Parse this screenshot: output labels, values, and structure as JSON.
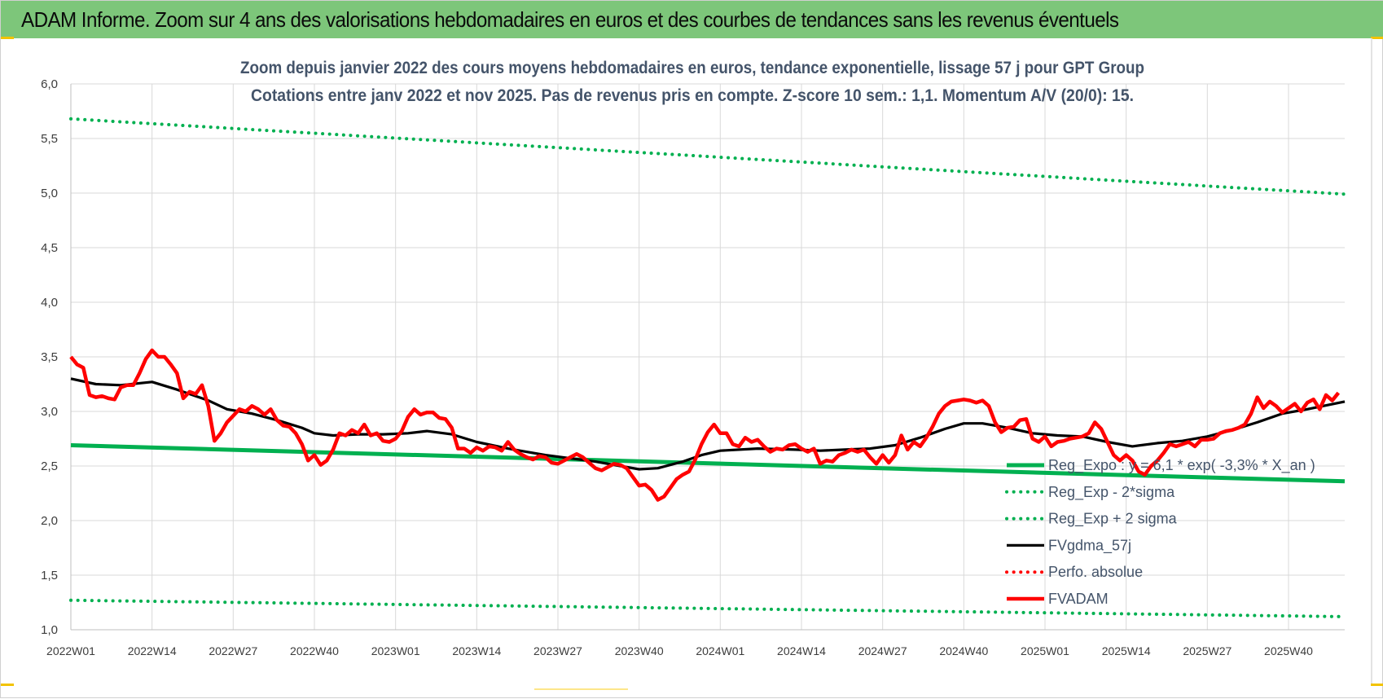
{
  "banner": {
    "title": "ADAM Informe. Zoom sur 4 ans des valorisations hebdomadaires en euros et des courbes de tendances sans les revenus éventuels"
  },
  "colors": {
    "banner_bg": "#7dc67a",
    "reg_expo": "#00b050",
    "fvgdma": "#000000",
    "fvadam": "#ff0000",
    "perfo": "#ff0000",
    "grid": "#d9d9d9",
    "title_text": "#44546a"
  },
  "chart_data": {
    "type": "line",
    "title_line1": "Zoom depuis janvier 2022 des cours moyens hebdomadaires en euros, tendance exponentielle, lissage 57 j pour GPT Group",
    "title_line2": "Cotations entre janv 2022 et nov 2025. Pas de revenus pris en compte. Z-score 10 sem.: 1,1. Momentum A/V (20/0): 15.",
    "xlabel": "",
    "ylabel": "",
    "ylim": [
      1.0,
      6.0
    ],
    "yticks": [
      "1,0",
      "1,5",
      "2,0",
      "2,5",
      "3,0",
      "3,5",
      "4,0",
      "4,5",
      "5,0",
      "5,5",
      "6,0"
    ],
    "x_range_weeks": [
      0,
      204
    ],
    "xticks": [
      {
        "w": 0,
        "label": "2022W01"
      },
      {
        "w": 13,
        "label": "2022W14"
      },
      {
        "w": 26,
        "label": "2022W27"
      },
      {
        "w": 39,
        "label": "2022W40"
      },
      {
        "w": 52,
        "label": "2023W01"
      },
      {
        "w": 65,
        "label": "2023W14"
      },
      {
        "w": 78,
        "label": "2023W27"
      },
      {
        "w": 91,
        "label": "2023W40"
      },
      {
        "w": 104,
        "label": "2024W01"
      },
      {
        "w": 117,
        "label": "2024W14"
      },
      {
        "w": 130,
        "label": "2024W27"
      },
      {
        "w": 143,
        "label": "2024W40"
      },
      {
        "w": 156,
        "label": "2025W01"
      },
      {
        "w": 169,
        "label": "2025W14"
      },
      {
        "w": 182,
        "label": "2025W27"
      },
      {
        "w": 195,
        "label": "2025W40"
      }
    ],
    "grid": true,
    "legend_position": "bottom-right",
    "series": [
      {
        "name": "Reg_Expo : y = 6,1 * exp( -3,3% * X_an )",
        "style": "solid-thick",
        "color": "#00b050",
        "points": [
          [
            0,
            2.69
          ],
          [
            204,
            2.36
          ]
        ]
      },
      {
        "name": "Reg_Exp - 2*sigma",
        "style": "dotted",
        "color": "#00b050",
        "points": [
          [
            0,
            1.27
          ],
          [
            204,
            1.12
          ]
        ]
      },
      {
        "name": "Reg_Exp + 2 sigma",
        "style": "dotted",
        "color": "#00b050",
        "points": [
          [
            0,
            5.68
          ],
          [
            204,
            4.99
          ]
        ]
      },
      {
        "name": "FVgdma_57j",
        "style": "solid",
        "color": "#000000",
        "points": [
          [
            0,
            3.3
          ],
          [
            4,
            3.25
          ],
          [
            8,
            3.24
          ],
          [
            13,
            3.27
          ],
          [
            17,
            3.2
          ],
          [
            22,
            3.1
          ],
          [
            25,
            3.02
          ],
          [
            29,
            2.98
          ],
          [
            33,
            2.92
          ],
          [
            37,
            2.85
          ],
          [
            39,
            2.8
          ],
          [
            42,
            2.78
          ],
          [
            46,
            2.79
          ],
          [
            50,
            2.79
          ],
          [
            54,
            2.8
          ],
          [
            57,
            2.82
          ],
          [
            61,
            2.79
          ],
          [
            65,
            2.72
          ],
          [
            70,
            2.66
          ],
          [
            76,
            2.6
          ],
          [
            80,
            2.57
          ],
          [
            84,
            2.54
          ],
          [
            88,
            2.5
          ],
          [
            91,
            2.47
          ],
          [
            94,
            2.48
          ],
          [
            98,
            2.54
          ],
          [
            101,
            2.6
          ],
          [
            104,
            2.64
          ],
          [
            110,
            2.66
          ],
          [
            116,
            2.65
          ],
          [
            120,
            2.64
          ],
          [
            124,
            2.65
          ],
          [
            128,
            2.66
          ],
          [
            132,
            2.69
          ],
          [
            136,
            2.76
          ],
          [
            140,
            2.84
          ],
          [
            143,
            2.89
          ],
          [
            146,
            2.89
          ],
          [
            150,
            2.85
          ],
          [
            154,
            2.8
          ],
          [
            158,
            2.78
          ],
          [
            162,
            2.77
          ],
          [
            166,
            2.72
          ],
          [
            170,
            2.68
          ],
          [
            174,
            2.71
          ],
          [
            178,
            2.73
          ],
          [
            182,
            2.77
          ],
          [
            186,
            2.83
          ],
          [
            190,
            2.9
          ],
          [
            194,
            2.98
          ],
          [
            198,
            3.02
          ],
          [
            204,
            3.09
          ]
        ]
      },
      {
        "name": "Perfo. absolue",
        "style": "dotted",
        "color": "#ff0000",
        "points": []
      },
      {
        "name": "FVADAM",
        "style": "solid-thick",
        "color": "#ff0000",
        "points": [
          [
            0,
            3.5
          ],
          [
            1,
            3.43
          ],
          [
            2,
            3.4
          ],
          [
            3,
            3.15
          ],
          [
            4,
            3.13
          ],
          [
            5,
            3.14
          ],
          [
            6,
            3.12
          ],
          [
            7,
            3.11
          ],
          [
            8,
            3.22
          ],
          [
            9,
            3.24
          ],
          [
            10,
            3.24
          ],
          [
            11,
            3.35
          ],
          [
            12,
            3.48
          ],
          [
            13,
            3.56
          ],
          [
            14,
            3.5
          ],
          [
            15,
            3.5
          ],
          [
            16,
            3.43
          ],
          [
            17,
            3.35
          ],
          [
            18,
            3.12
          ],
          [
            19,
            3.18
          ],
          [
            20,
            3.16
          ],
          [
            21,
            3.24
          ],
          [
            22,
            3.05
          ],
          [
            23,
            2.73
          ],
          [
            24,
            2.8
          ],
          [
            25,
            2.9
          ],
          [
            26,
            2.96
          ],
          [
            27,
            3.02
          ],
          [
            28,
            3.0
          ],
          [
            29,
            3.05
          ],
          [
            30,
            3.02
          ],
          [
            31,
            2.97
          ],
          [
            32,
            3.02
          ],
          [
            33,
            2.92
          ],
          [
            34,
            2.87
          ],
          [
            35,
            2.86
          ],
          [
            36,
            2.8
          ],
          [
            37,
            2.7
          ],
          [
            38,
            2.55
          ],
          [
            39,
            2.6
          ],
          [
            40,
            2.51
          ],
          [
            41,
            2.55
          ],
          [
            42,
            2.65
          ],
          [
            43,
            2.8
          ],
          [
            44,
            2.78
          ],
          [
            45,
            2.83
          ],
          [
            46,
            2.8
          ],
          [
            47,
            2.88
          ],
          [
            48,
            2.78
          ],
          [
            49,
            2.8
          ],
          [
            50,
            2.73
          ],
          [
            51,
            2.72
          ],
          [
            52,
            2.75
          ],
          [
            53,
            2.82
          ],
          [
            54,
            2.95
          ],
          [
            55,
            3.02
          ],
          [
            56,
            2.97
          ],
          [
            57,
            2.99
          ],
          [
            58,
            2.99
          ],
          [
            59,
            2.94
          ],
          [
            60,
            2.93
          ],
          [
            61,
            2.85
          ],
          [
            62,
            2.66
          ],
          [
            63,
            2.66
          ],
          [
            64,
            2.62
          ],
          [
            65,
            2.67
          ],
          [
            66,
            2.64
          ],
          [
            67,
            2.68
          ],
          [
            68,
            2.67
          ],
          [
            69,
            2.64
          ],
          [
            70,
            2.72
          ],
          [
            71,
            2.65
          ],
          [
            72,
            2.61
          ],
          [
            73,
            2.58
          ],
          [
            74,
            2.56
          ],
          [
            75,
            2.59
          ],
          [
            76,
            2.58
          ],
          [
            77,
            2.53
          ],
          [
            78,
            2.52
          ],
          [
            79,
            2.55
          ],
          [
            80,
            2.58
          ],
          [
            81,
            2.61
          ],
          [
            82,
            2.58
          ],
          [
            83,
            2.53
          ],
          [
            84,
            2.48
          ],
          [
            85,
            2.46
          ],
          [
            86,
            2.49
          ],
          [
            87,
            2.52
          ],
          [
            88,
            2.51
          ],
          [
            89,
            2.48
          ],
          [
            90,
            2.4
          ],
          [
            91,
            2.32
          ],
          [
            92,
            2.33
          ],
          [
            93,
            2.28
          ],
          [
            94,
            2.19
          ],
          [
            95,
            2.22
          ],
          [
            96,
            2.3
          ],
          [
            97,
            2.38
          ],
          [
            98,
            2.42
          ],
          [
            99,
            2.45
          ],
          [
            100,
            2.56
          ],
          [
            101,
            2.7
          ],
          [
            102,
            2.81
          ],
          [
            103,
            2.88
          ],
          [
            104,
            2.8
          ],
          [
            105,
            2.8
          ],
          [
            106,
            2.7
          ],
          [
            107,
            2.68
          ],
          [
            108,
            2.76
          ],
          [
            109,
            2.72
          ],
          [
            110,
            2.74
          ],
          [
            111,
            2.68
          ],
          [
            112,
            2.63
          ],
          [
            113,
            2.66
          ],
          [
            114,
            2.65
          ],
          [
            115,
            2.69
          ],
          [
            116,
            2.7
          ],
          [
            117,
            2.66
          ],
          [
            118,
            2.63
          ],
          [
            119,
            2.66
          ],
          [
            120,
            2.52
          ],
          [
            121,
            2.55
          ],
          [
            122,
            2.54
          ],
          [
            123,
            2.6
          ],
          [
            124,
            2.62
          ],
          [
            125,
            2.65
          ],
          [
            126,
            2.63
          ],
          [
            127,
            2.65
          ],
          [
            128,
            2.58
          ],
          [
            129,
            2.52
          ],
          [
            130,
            2.6
          ],
          [
            131,
            2.53
          ],
          [
            132,
            2.6
          ],
          [
            133,
            2.78
          ],
          [
            134,
            2.65
          ],
          [
            135,
            2.72
          ],
          [
            136,
            2.68
          ],
          [
            137,
            2.76
          ],
          [
            138,
            2.86
          ],
          [
            139,
            2.98
          ],
          [
            140,
            3.05
          ],
          [
            141,
            3.09
          ],
          [
            142,
            3.1
          ],
          [
            143,
            3.11
          ],
          [
            144,
            3.1
          ],
          [
            145,
            3.08
          ],
          [
            146,
            3.1
          ],
          [
            147,
            3.05
          ],
          [
            148,
            2.9
          ],
          [
            149,
            2.81
          ],
          [
            150,
            2.85
          ],
          [
            151,
            2.86
          ],
          [
            152,
            2.92
          ],
          [
            153,
            2.93
          ],
          [
            154,
            2.75
          ],
          [
            155,
            2.72
          ],
          [
            156,
            2.77
          ],
          [
            157,
            2.68
          ],
          [
            158,
            2.72
          ],
          [
            159,
            2.73
          ],
          [
            160,
            2.75
          ],
          [
            161,
            2.76
          ],
          [
            162,
            2.77
          ],
          [
            163,
            2.8
          ],
          [
            164,
            2.9
          ],
          [
            165,
            2.84
          ],
          [
            166,
            2.72
          ],
          [
            167,
            2.6
          ],
          [
            168,
            2.55
          ],
          [
            169,
            2.6
          ],
          [
            170,
            2.55
          ],
          [
            171,
            2.45
          ],
          [
            172,
            2.42
          ],
          [
            173,
            2.5
          ],
          [
            174,
            2.55
          ],
          [
            175,
            2.62
          ],
          [
            176,
            2.7
          ],
          [
            177,
            2.68
          ],
          [
            178,
            2.7
          ],
          [
            179,
            2.72
          ],
          [
            180,
            2.68
          ],
          [
            181,
            2.74
          ],
          [
            182,
            2.74
          ],
          [
            183,
            2.75
          ],
          [
            184,
            2.8
          ],
          [
            185,
            2.82
          ],
          [
            186,
            2.83
          ],
          [
            187,
            2.85
          ],
          [
            188,
            2.88
          ],
          [
            189,
            2.98
          ],
          [
            190,
            3.13
          ],
          [
            191,
            3.03
          ],
          [
            192,
            3.09
          ],
          [
            193,
            3.05
          ],
          [
            194,
            2.99
          ],
          [
            195,
            3.03
          ],
          [
            196,
            3.07
          ],
          [
            197,
            3.0
          ],
          [
            198,
            3.08
          ],
          [
            199,
            3.11
          ],
          [
            200,
            3.02
          ],
          [
            201,
            3.15
          ],
          [
            202,
            3.1
          ],
          [
            203,
            3.17
          ]
        ]
      }
    ]
  }
}
